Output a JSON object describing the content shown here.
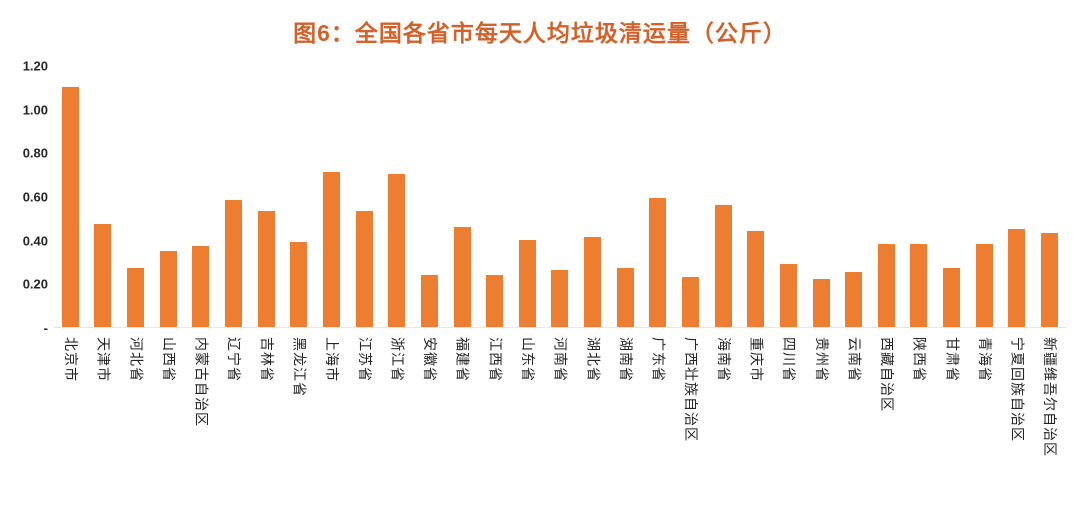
{
  "chart_data": {
    "type": "bar",
    "title": "图6：全国各省市每天人均垃圾清运量（公斤）",
    "categories": [
      "北京市",
      "天津市",
      "河北省",
      "山西省",
      "内蒙古自治区",
      "辽宁省",
      "吉林省",
      "黑龙江省",
      "上海市",
      "江苏省",
      "浙江省",
      "安徽省",
      "福建省",
      "江西省",
      "山东省",
      "河南省",
      "湖北省",
      "湖南省",
      "广东省",
      "广西壮族自治区",
      "海南省",
      "重庆市",
      "四川省",
      "贵州省",
      "云南省",
      "西藏自治区",
      "陕西省",
      "甘肃省",
      "青海省",
      "宁夏回族自治区",
      "新疆维吾尔自治区"
    ],
    "values": [
      1.1,
      0.47,
      0.27,
      0.35,
      0.37,
      0.58,
      0.53,
      0.39,
      0.71,
      0.53,
      0.7,
      0.24,
      0.46,
      0.24,
      0.4,
      0.26,
      0.41,
      0.27,
      0.59,
      0.23,
      0.56,
      0.44,
      0.29,
      0.22,
      0.25,
      0.38,
      0.38,
      0.27,
      0.38,
      0.45,
      0.43
    ],
    "xlabel": "",
    "ylabel": "",
    "ylim": [
      0,
      1.2
    ],
    "yticks": [
      {
        "label": "1.20",
        "value": 1.2
      },
      {
        "label": "1.00",
        "value": 1.0
      },
      {
        "label": "0.80",
        "value": 0.8
      },
      {
        "label": "0.60",
        "value": 0.6
      },
      {
        "label": "0.40",
        "value": 0.4
      },
      {
        "label": "0.20",
        "value": 0.2
      },
      {
        "label": "-",
        "value": 0
      }
    ],
    "grid": false,
    "legend": "none",
    "bar_color": "#ED7D31",
    "title_color": "#D2622C",
    "axis_text_color": "#262626",
    "background": "#FFFFFF"
  }
}
